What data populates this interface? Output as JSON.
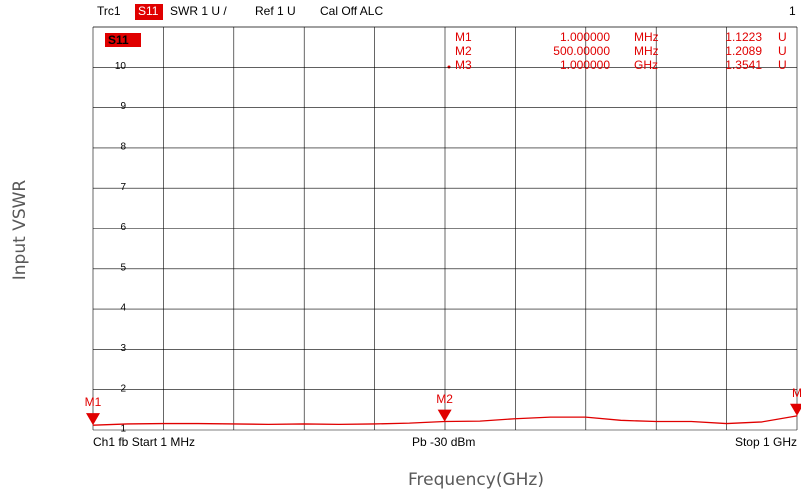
{
  "chart_data": {
    "type": "line",
    "header": [
      "Trc1",
      "S11",
      "SWR  1 U /",
      "Ref 1 U",
      "Cal Off ALC"
    ],
    "channel": "1",
    "trace_label": "S11",
    "footer": [
      "Ch1  fb  Start  1 MHz",
      "Pb  -30 dBm",
      "Stop  1 GHz"
    ],
    "x_label": "Frequency(GHz)",
    "y_label": "Input VSWR",
    "xlim": [
      0.001,
      1
    ],
    "x_divisions": 10,
    "ylim": [
      1,
      11
    ],
    "yticks": [
      1,
      2,
      3,
      4,
      5,
      6,
      7,
      8,
      9,
      10
    ],
    "grid": true,
    "x": [
      0.001,
      0.05,
      0.1,
      0.15,
      0.2,
      0.25,
      0.3,
      0.35,
      0.4,
      0.45,
      0.5,
      0.55,
      0.6,
      0.65,
      0.7,
      0.75,
      0.8,
      0.85,
      0.9,
      0.95,
      1.0
    ],
    "series": [
      {
        "color": "#e00000",
        "values": [
          1.12,
          1.15,
          1.16,
          1.16,
          1.15,
          1.14,
          1.15,
          1.14,
          1.15,
          1.17,
          1.21,
          1.22,
          1.28,
          1.32,
          1.32,
          1.24,
          1.21,
          1.21,
          1.16,
          1.2,
          1.35
        ]
      }
    ],
    "markers": [
      {
        "name": "M1",
        "freq": "1.000000",
        "unit": "MHz",
        "x": 0.001,
        "value": 1.1223,
        "value_unit": "U",
        "plot_label": "M1"
      },
      {
        "name": "M2",
        "freq": "500.00000",
        "unit": "MHz",
        "x": 0.5,
        "value": 1.2089,
        "value_unit": "U",
        "plot_label": "M2"
      },
      {
        "name": "M3",
        "freq": "1.000000",
        "unit": "GHz",
        "x": 1.0,
        "value": 1.3541,
        "value_unit": "U",
        "plot_label": "M"
      }
    ]
  }
}
